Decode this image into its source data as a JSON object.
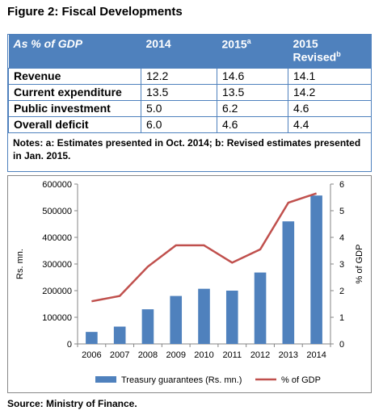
{
  "figure_title": "Figure 2: Fiscal Developments",
  "table": {
    "header": {
      "label": "As % of GDP",
      "col1": "2014",
      "col2": "2015",
      "col2_sup": "a",
      "col3": "2015",
      "col3_sub": "Revised",
      "col3_sup": "b"
    },
    "rows": [
      {
        "label": "Revenue",
        "v2014": "12.2",
        "v2015": "14.6",
        "v2015r": "14.1"
      },
      {
        "label": "Current expenditure",
        "v2014": "13.5",
        "v2015": "13.5",
        "v2015r": "14.2"
      },
      {
        "label": "Public investment",
        "v2014": "5.0",
        "v2015": "6.2",
        "v2015r": "4.6"
      },
      {
        "label": "Overall deficit",
        "v2014": "6.0",
        "v2015": "4.6",
        "v2015r": "4.4"
      }
    ],
    "notes": "Notes: a: Estimates presented in Oct. 2014;  b: Revised estimates presented in Jan. 2015."
  },
  "chart_data": {
    "type": "bar",
    "categories": [
      "2006",
      "2007",
      "2008",
      "2009",
      "2010",
      "2011",
      "2012",
      "2013",
      "2014"
    ],
    "series": [
      {
        "name": "Treasury guarantees (Rs. mn.)",
        "type": "bar",
        "axis": "left",
        "color": "#4f81bd",
        "values": [
          45000,
          65000,
          130000,
          180000,
          207000,
          200000,
          268000,
          460000,
          557000
        ]
      },
      {
        "name": "% of GDP",
        "type": "line",
        "axis": "right",
        "color": "#c0504d",
        "values": [
          1.6,
          1.8,
          2.9,
          3.7,
          3.7,
          3.05,
          3.55,
          5.3,
          5.65
        ]
      }
    ],
    "ylabel": "Rs. mn.",
    "y2label": "% of GDP",
    "ylim": [
      0,
      600000
    ],
    "y2lim": [
      0,
      6
    ],
    "yticks": [
      "0",
      "100000",
      "200000",
      "300000",
      "400000",
      "500000",
      "600000"
    ],
    "y2ticks": [
      "0",
      "1",
      "2",
      "3",
      "4",
      "5",
      "6"
    ],
    "gridlines": false,
    "legend_position": "bottom"
  },
  "source": "Source: Ministry of Finance."
}
